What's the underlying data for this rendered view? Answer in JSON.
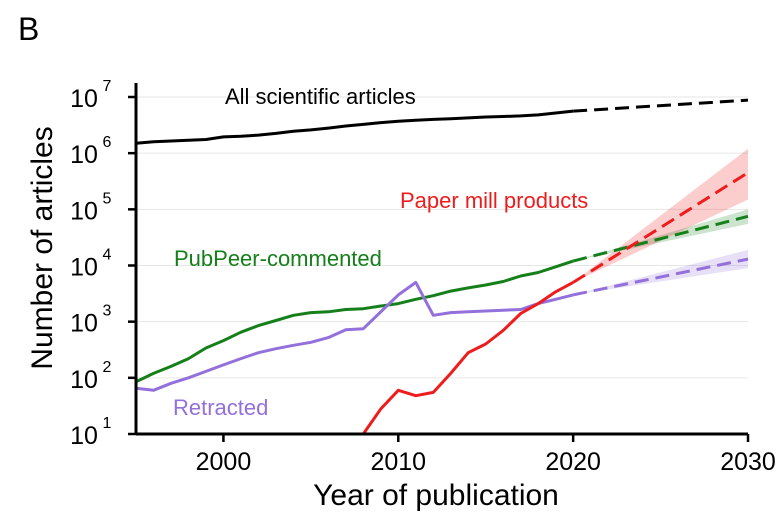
{
  "panel_label": "B",
  "chart_data": {
    "type": "line",
    "title": "",
    "xlabel": "Year of publication",
    "ylabel": "Number of articles",
    "xlim": [
      1995,
      2030
    ],
    "ylim_log10": [
      1,
      7
    ],
    "yscale": "log",
    "x_ticks": [
      2000,
      2010,
      2020,
      2030
    ],
    "y_ticks": [
      {
        "base": "10",
        "exp": "1",
        "log": 1
      },
      {
        "base": "10",
        "exp": "2",
        "log": 2
      },
      {
        "base": "10",
        "exp": "3",
        "log": 3
      },
      {
        "base": "10",
        "exp": "4",
        "log": 4
      },
      {
        "base": "10",
        "exp": "5",
        "log": 5
      },
      {
        "base": "10",
        "exp": "6",
        "log": 6
      },
      {
        "base": "10",
        "exp": "7",
        "log": 7
      }
    ],
    "grid": "horizontal",
    "series": [
      {
        "name": "All scientific articles",
        "color": "#000000",
        "x": [
          1995,
          1996,
          1997,
          1998,
          1999,
          2000,
          2001,
          2002,
          2003,
          2004,
          2005,
          2006,
          2007,
          2008,
          2009,
          2010,
          2011,
          2012,
          2013,
          2014,
          2015,
          2016,
          2017,
          2018,
          2019,
          2020
        ],
        "y": [
          1500000,
          1600000,
          1650000,
          1700000,
          1750000,
          1950000,
          2000000,
          2100000,
          2250000,
          2450000,
          2600000,
          2800000,
          3050000,
          3250000,
          3500000,
          3700000,
          3850000,
          4000000,
          4100000,
          4250000,
          4400000,
          4500000,
          4600000,
          4800000,
          5200000,
          5600000
        ],
        "projection": {
          "x": [
            2020,
            2030
          ],
          "y": [
            5600000,
            8800000
          ],
          "band_low": null,
          "band_high": null
        }
      },
      {
        "name": "PubPeer-commented",
        "color": "#15801a",
        "x": [
          1995,
          1996,
          1997,
          1998,
          1999,
          2000,
          2001,
          2002,
          2003,
          2004,
          2005,
          2006,
          2007,
          2008,
          2009,
          2010,
          2011,
          2012,
          2013,
          2014,
          2015,
          2016,
          2017,
          2018,
          2019,
          2020
        ],
        "y": [
          85,
          120,
          160,
          220,
          340,
          460,
          650,
          850,
          1050,
          1300,
          1450,
          1500,
          1650,
          1700,
          1900,
          2100,
          2500,
          2900,
          3500,
          4000,
          4500,
          5200,
          6500,
          7500,
          9500,
          12000
        ],
        "projection": {
          "x": [
            2020,
            2030
          ],
          "y": [
            12000,
            75000
          ],
          "band_low": [
            12000,
            55000
          ],
          "band_high": [
            12000,
            100000
          ]
        }
      },
      {
        "name": "Retracted",
        "color": "#9370db",
        "x": [
          1995,
          1996,
          1997,
          1998,
          1999,
          2000,
          2001,
          2002,
          2003,
          2004,
          2005,
          2006,
          2007,
          2008,
          2009,
          2010,
          2011,
          2012,
          2013,
          2014,
          2015,
          2016,
          2017,
          2018,
          2019,
          2020
        ],
        "y": [
          65,
          60,
          80,
          100,
          130,
          170,
          220,
          280,
          330,
          380,
          430,
          520,
          720,
          750,
          1500,
          3000,
          5000,
          1300,
          1450,
          1500,
          1550,
          1600,
          1650,
          2100,
          2500,
          3000
        ],
        "projection": {
          "x": [
            2020,
            2030
          ],
          "y": [
            3000,
            13000
          ],
          "band_low": [
            3000,
            9000
          ],
          "band_high": [
            3000,
            19000
          ]
        }
      },
      {
        "name": "Paper mill products",
        "color": "#ee1c1c",
        "x": [
          2008,
          2009,
          2010,
          2011,
          2012,
          2013,
          2014,
          2015,
          2016,
          2017,
          2018,
          2019,
          2020
        ],
        "y": [
          10,
          28,
          60,
          48,
          55,
          120,
          280,
          400,
          700,
          1400,
          2100,
          3400,
          5000
        ],
        "projection": {
          "x": [
            2020,
            2030
          ],
          "y": [
            5000,
            450000
          ],
          "band_low": [
            5000,
            150000
          ],
          "band_high": [
            5000,
            1200000
          ]
        }
      }
    ],
    "annotations": [
      {
        "text": "All scientific articles",
        "series": "All scientific articles"
      },
      {
        "text": "Paper mill products",
        "series": "Paper mill products"
      },
      {
        "text": "PubPeer-commented",
        "series": "PubPeer-commented"
      },
      {
        "text": "Retracted",
        "series": "Retracted"
      }
    ]
  }
}
